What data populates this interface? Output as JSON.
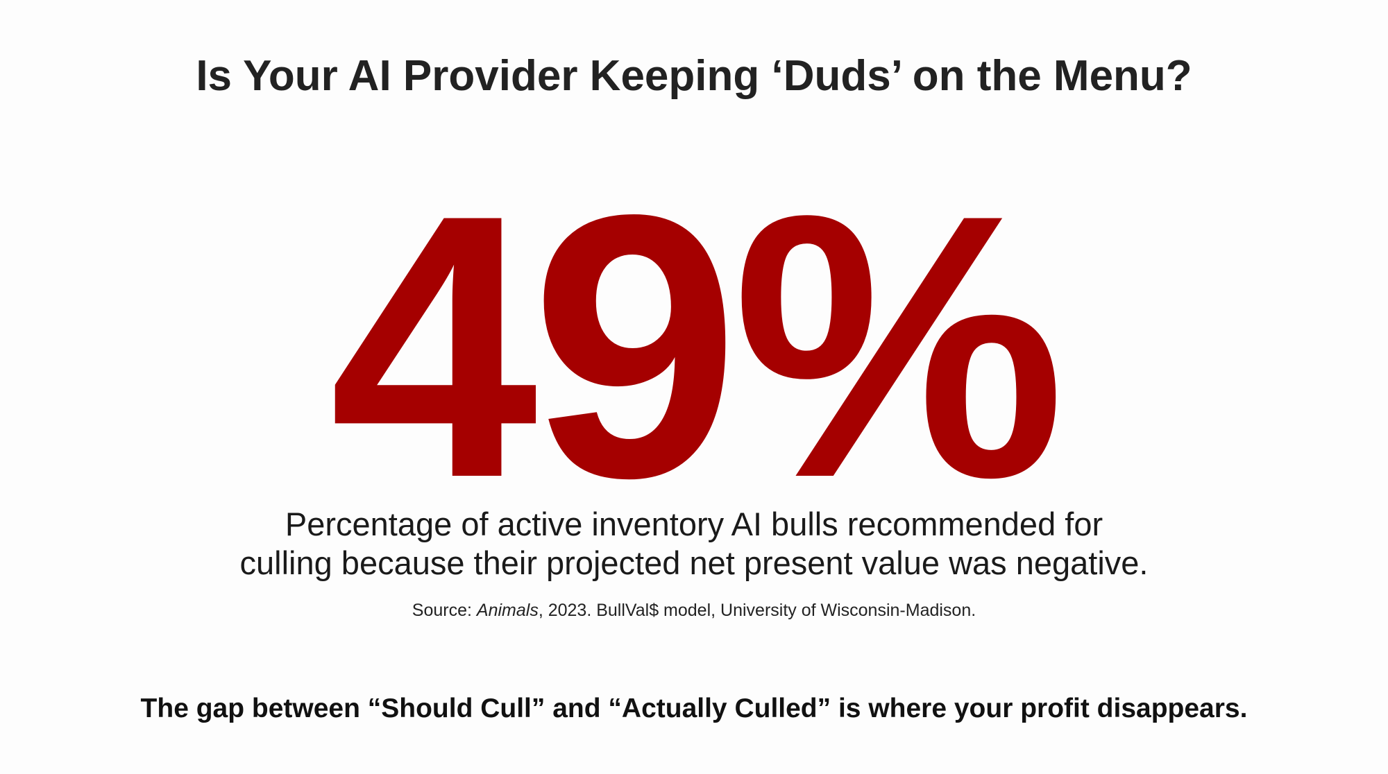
{
  "header": {
    "title": "Is Your AI Provider Keeping ‘Duds’ on the Menu?"
  },
  "stat": {
    "value": "49%"
  },
  "description": {
    "lines": [
      "Percentage of active inventory AI bulls recommended for",
      "culling because their projected net present value was negative."
    ]
  },
  "source": {
    "prefix": "Source: ",
    "italic": "Animals",
    "suffix": ", 2023. BullVal$ model, University of Wisconsin-Madison."
  },
  "footer": {
    "text": "The gap between “Should Cull” and “Actually Culled” is where your profit disappears."
  }
}
